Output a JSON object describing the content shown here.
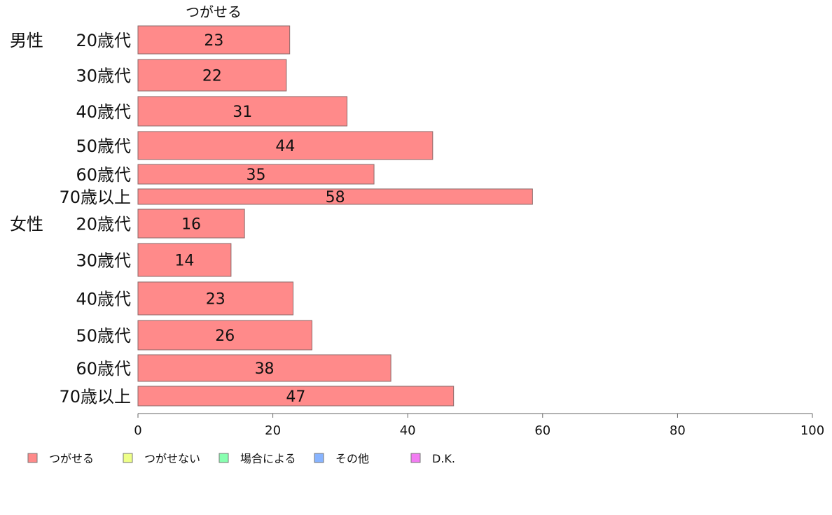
{
  "chart_data": {
    "type": "bar",
    "orientation": "horizontal",
    "title": "",
    "column_header": "つがせる",
    "categories": [
      {
        "group": "男性",
        "label": "20歳代"
      },
      {
        "group": "",
        "label": "30歳代"
      },
      {
        "group": "",
        "label": "40歳代"
      },
      {
        "group": "",
        "label": "50歳代"
      },
      {
        "group": "",
        "label": "60歳代"
      },
      {
        "group": "",
        "label": "70歳以上"
      },
      {
        "group": "女性",
        "label": "20歳代"
      },
      {
        "group": "",
        "label": "30歳代"
      },
      {
        "group": "",
        "label": "40歳代"
      },
      {
        "group": "",
        "label": "50歳代"
      },
      {
        "group": "",
        "label": "60歳代"
      },
      {
        "group": "",
        "label": "70歳以上"
      }
    ],
    "series": [
      {
        "name": "つがせる",
        "color": "#ff8a8a",
        "values": [
          22.5,
          22,
          31,
          43.7,
          35,
          58.5,
          15.8,
          13.8,
          23,
          25.8,
          37.5,
          46.8
        ],
        "labels": [
          "23",
          "22",
          "31",
          "44",
          "35",
          "58",
          "16",
          "14",
          "23",
          "26",
          "38",
          "47"
        ]
      }
    ],
    "xlim": [
      0,
      100
    ],
    "xticks": [
      "0",
      "20",
      "40",
      "60",
      "80",
      "100"
    ],
    "legend": [
      {
        "label": "つがせる",
        "color": "#ff8a8a"
      },
      {
        "label": "つがせない",
        "color": "#eeff88"
      },
      {
        "label": "場合による",
        "color": "#88ffb0"
      },
      {
        "label": "その他",
        "color": "#88b4ff"
      },
      {
        "label": "D.K.",
        "color": "#f27cf2"
      }
    ],
    "legend_position": "bottom-left",
    "grid": false
  }
}
